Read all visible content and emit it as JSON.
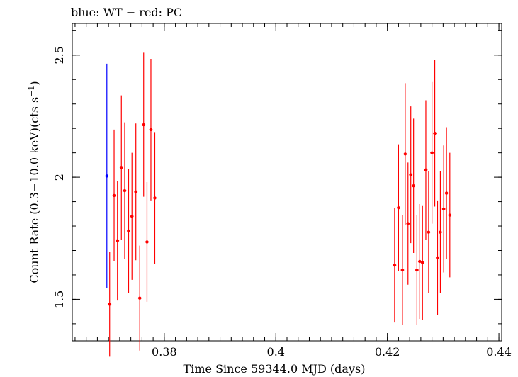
{
  "chart_data": {
    "type": "scatter",
    "title": "blue: WT − red: PC",
    "xlabel": "Time Since 59344.0 MJD (days)",
    "ylabel_main": "Count Rate (0.3−10.0 keV)(cts s",
    "ylabel_sup": "−1",
    "ylabel_close": ")",
    "xlim": [
      0.3635,
      0.4405
    ],
    "ylim": [
      1.33,
      2.63
    ],
    "xticks": [
      {
        "value": 0.38,
        "label": "0.38"
      },
      {
        "value": 0.4,
        "label": "0.4"
      },
      {
        "value": 0.42,
        "label": "0.42"
      },
      {
        "value": 0.44,
        "label": "0.44"
      }
    ],
    "yticks": [
      {
        "value": 1.5,
        "label": "1.5"
      },
      {
        "value": 2.0,
        "label": "2"
      },
      {
        "value": 2.5,
        "label": "2.5"
      }
    ],
    "x_minor_step": 0.002,
    "y_minor_step": 0.1,
    "series": [
      {
        "name": "WT",
        "color": "#0000ff",
        "xerr": 0.00015,
        "points": [
          {
            "x": 0.3697,
            "y": 2.005,
            "lo": 1.545,
            "hi": 2.465
          }
        ]
      },
      {
        "name": "PC",
        "color": "#ff0000",
        "xerr": 0.0003,
        "points": [
          {
            "x": 0.3702,
            "y": 1.48,
            "lo": 1.265,
            "hi": 1.695
          },
          {
            "x": 0.371,
            "y": 1.925,
            "lo": 1.655,
            "hi": 2.195
          },
          {
            "x": 0.3716,
            "y": 1.74,
            "lo": 1.495,
            "hi": 1.985
          },
          {
            "x": 0.3723,
            "y": 2.04,
            "lo": 1.745,
            "hi": 2.335
          },
          {
            "x": 0.3729,
            "y": 1.945,
            "lo": 1.665,
            "hi": 2.225
          },
          {
            "x": 0.3736,
            "y": 1.78,
            "lo": 1.525,
            "hi": 2.035
          },
          {
            "x": 0.3742,
            "y": 1.84,
            "lo": 1.58,
            "hi": 2.1
          },
          {
            "x": 0.3749,
            "y": 1.94,
            "lo": 1.66,
            "hi": 2.22
          },
          {
            "x": 0.3756,
            "y": 1.505,
            "lo": 1.29,
            "hi": 1.72
          },
          {
            "x": 0.3763,
            "y": 2.215,
            "lo": 1.92,
            "hi": 2.51
          },
          {
            "x": 0.3769,
            "y": 1.735,
            "lo": 1.49,
            "hi": 1.98
          },
          {
            "x": 0.3776,
            "y": 2.195,
            "lo": 1.905,
            "hi": 2.485
          },
          {
            "x": 0.3783,
            "y": 1.915,
            "lo": 1.645,
            "hi": 2.185
          },
          {
            "x": 0.4213,
            "y": 1.64,
            "lo": 1.405,
            "hi": 1.875
          },
          {
            "x": 0.422,
            "y": 1.875,
            "lo": 1.615,
            "hi": 2.135
          },
          {
            "x": 0.4227,
            "y": 1.62,
            "lo": 1.395,
            "hi": 1.845
          },
          {
            "x": 0.4232,
            "y": 2.095,
            "lo": 1.805,
            "hi": 2.385
          },
          {
            "x": 0.4237,
            "y": 1.81,
            "lo": 1.56,
            "hi": 2.06
          },
          {
            "x": 0.4242,
            "y": 2.01,
            "lo": 1.73,
            "hi": 2.29
          },
          {
            "x": 0.4247,
            "y": 1.965,
            "lo": 1.69,
            "hi": 2.24
          },
          {
            "x": 0.4253,
            "y": 1.62,
            "lo": 1.395,
            "hi": 1.845
          },
          {
            "x": 0.4258,
            "y": 1.655,
            "lo": 1.42,
            "hi": 1.89
          },
          {
            "x": 0.4263,
            "y": 1.65,
            "lo": 1.415,
            "hi": 1.885
          },
          {
            "x": 0.4269,
            "y": 2.03,
            "lo": 1.745,
            "hi": 2.315
          },
          {
            "x": 0.4274,
            "y": 1.775,
            "lo": 1.525,
            "hi": 2.025
          },
          {
            "x": 0.428,
            "y": 2.1,
            "lo": 1.81,
            "hi": 2.39
          },
          {
            "x": 0.4285,
            "y": 2.18,
            "lo": 1.88,
            "hi": 2.48
          },
          {
            "x": 0.429,
            "y": 1.67,
            "lo": 1.435,
            "hi": 1.905
          },
          {
            "x": 0.4295,
            "y": 1.775,
            "lo": 1.525,
            "hi": 2.025
          },
          {
            "x": 0.4301,
            "y": 1.87,
            "lo": 1.61,
            "hi": 2.13
          },
          {
            "x": 0.4306,
            "y": 1.935,
            "lo": 1.665,
            "hi": 2.205
          },
          {
            "x": 0.4312,
            "y": 1.845,
            "lo": 1.59,
            "hi": 2.1
          }
        ]
      }
    ]
  }
}
